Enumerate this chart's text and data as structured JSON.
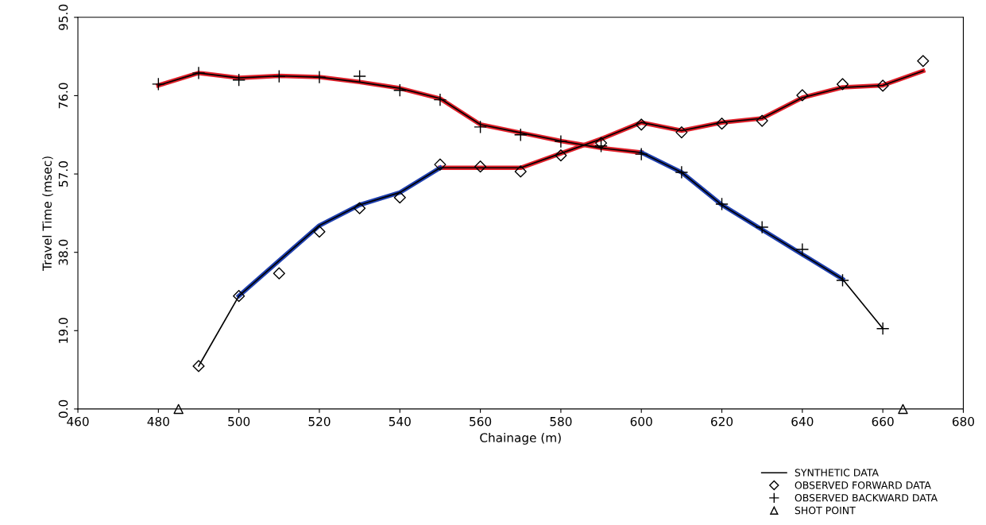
{
  "chart_data": {
    "type": "line",
    "xlabel": "Chainage (m)",
    "ylabel": "Travel Time (msec)",
    "xlim": [
      460,
      680
    ],
    "xticks": [
      460,
      480,
      500,
      520,
      540,
      560,
      580,
      600,
      620,
      640,
      660,
      680
    ],
    "ylim": [
      0,
      95
    ],
    "yticks": [
      {
        "value": 0,
        "label": "0.0"
      },
      {
        "value": 19,
        "label": "19.0"
      },
      {
        "value": 38,
        "label": "38.0"
      },
      {
        "value": 57,
        "label": "57.0"
      },
      {
        "value": 76,
        "label": "76.0"
      },
      {
        "value": 95,
        "label": "95.0"
      }
    ],
    "grid": false,
    "legend": "bottom right",
    "series": [
      {
        "color": "#e0202a",
        "x": [
          550,
          560,
          570,
          580,
          590,
          600,
          610,
          620,
          630,
          640,
          650,
          660,
          670
        ],
        "values": [
          58.5,
          58.5,
          58.5,
          62,
          65.5,
          69.5,
          67.5,
          69.5,
          70.5,
          75.5,
          78,
          78.5,
          82
        ]
      },
      {
        "color": "#2040b0",
        "x": [
          500,
          510,
          520,
          530,
          540,
          550
        ],
        "values": [
          27.4,
          36,
          44.5,
          49.5,
          52.5,
          58.5
        ]
      },
      {
        "color": "#e0202a",
        "x": [
          480,
          490,
          500,
          510,
          520,
          530,
          540,
          550,
          560,
          570,
          580,
          590,
          600
        ],
        "values": [
          78.5,
          81.5,
          80.3,
          80.8,
          80.5,
          79.3,
          77.8,
          75.3,
          69,
          67,
          65,
          63.3,
          62.2
        ]
      },
      {
        "color": "#2040b0",
        "x": [
          600,
          610,
          620,
          630,
          640,
          650
        ],
        "values": [
          62.2,
          57.4,
          49.5,
          43.5,
          37.5,
          31.5
        ]
      },
      {
        "name": "SYNTHETIC DATA",
        "color": "#000000",
        "x": [
          490,
          500,
          510,
          520,
          530,
          540,
          550,
          560,
          570,
          580,
          590,
          600,
          610,
          620,
          630,
          640,
          650,
          660,
          670
        ],
        "values": [
          10.4,
          27.4,
          36,
          44.5,
          49.5,
          52.5,
          58.5,
          58.5,
          58.5,
          62,
          65.5,
          69.5,
          67.5,
          69.5,
          70.5,
          75.5,
          78,
          78.5,
          82
        ]
      },
      {
        "color": "#000000",
        "x": [
          480,
          490,
          500,
          510,
          520,
          530,
          540,
          550,
          560,
          570,
          580,
          590,
          600,
          610,
          620,
          630,
          640,
          650,
          660
        ],
        "values": [
          78.5,
          81.5,
          80.3,
          80.8,
          80.5,
          79.3,
          77.8,
          75.3,
          69,
          67,
          65,
          63.3,
          62.2,
          57.4,
          49.5,
          43.5,
          37.5,
          31.5,
          19.5
        ]
      },
      {
        "name": "OBSERVED FORWARD DATA",
        "type": "scatter",
        "marker": "diamond",
        "color": "#000000",
        "x": [
          490,
          500,
          510,
          520,
          530,
          540,
          550,
          560,
          570,
          580,
          590,
          600,
          610,
          620,
          630,
          640,
          650,
          660,
          670
        ],
        "values": [
          10.4,
          27.4,
          32.9,
          43,
          48.7,
          51.3,
          59.3,
          58.8,
          57.6,
          61.5,
          64.5,
          69,
          67.1,
          69.2,
          69.9,
          76.1,
          78.8,
          78.4,
          84.4
        ]
      },
      {
        "name": "OBSERVED BACKWARD DATA",
        "type": "scatter",
        "marker": "cross",
        "color": "#000000",
        "x": [
          480,
          490,
          500,
          510,
          520,
          530,
          540,
          550,
          560,
          570,
          580,
          590,
          600,
          610,
          620,
          630,
          640,
          650,
          660
        ],
        "values": [
          78.8,
          81.5,
          79.8,
          80.7,
          80.5,
          80.7,
          77.3,
          75,
          68.4,
          66.5,
          64.9,
          63.8,
          61.8,
          57.4,
          49.7,
          44.1,
          38.7,
          31.2,
          19.5
        ]
      },
      {
        "name": "SHOT POINT",
        "type": "scatter",
        "marker": "triangle",
        "color": "#000000",
        "x": [
          485,
          665
        ],
        "values": [
          0,
          0
        ]
      }
    ]
  }
}
